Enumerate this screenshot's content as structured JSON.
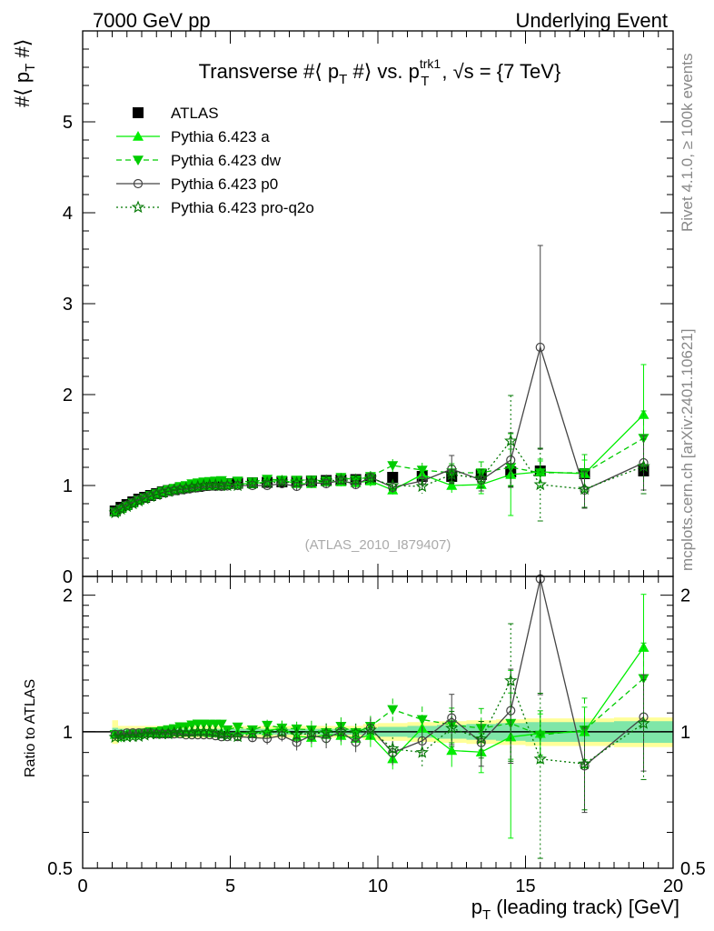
{
  "header": {
    "left": "7000 GeV pp",
    "right": "Underlying Event"
  },
  "side_labels": {
    "rivet": "Rivet 4.1.0, ≥ 100k events",
    "mcplots": "mcplots.cern.ch [arXiv:2401.10621]"
  },
  "chart_data": {
    "type": "line",
    "title": "Transverse #⟨ p_T #⟩ vs. p_T^trk1, √s = {7 TeV}",
    "title_parts": {
      "a": "Transverse #⟨ p",
      "sub1": "T",
      "b": " #⟩ vs. p",
      "sup2": "trk1",
      "sub2": "T",
      "c": ", √s = {7 TeV}"
    },
    "watermark": "(ATLAS_2010_I879407)",
    "ylabel": {
      "main": "#⟨ p",
      "sub": "T",
      "end": " #⟩"
    },
    "ratio_ylabel": "Ratio to ATLAS",
    "xlabel": {
      "main": "p",
      "sub": "T",
      "end": " (leading track) [GeV]"
    },
    "xlim": [
      0,
      20
    ],
    "ylim": [
      0,
      6
    ],
    "ratio_ylim": [
      0.5,
      2.2
    ],
    "x_ticks": [
      "0",
      "5",
      "10",
      "15",
      "20"
    ],
    "y_ticks": [
      "0",
      "1",
      "2",
      "3",
      "4",
      "5"
    ],
    "ratio_ticks": [
      "0.5",
      "1",
      "2"
    ],
    "x": [
      1.1,
      1.3,
      1.5,
      1.7,
      1.9,
      2.1,
      2.3,
      2.5,
      2.7,
      2.9,
      3.1,
      3.3,
      3.5,
      3.7,
      3.9,
      4.1,
      4.3,
      4.5,
      4.7,
      4.9,
      5.25,
      5.75,
      6.25,
      6.75,
      7.25,
      7.75,
      8.25,
      8.75,
      9.25,
      9.75,
      10.5,
      11.5,
      12.5,
      13.5,
      14.5,
      15.5,
      17.0,
      19.0
    ],
    "x_err": [
      0.1,
      0.1,
      0.1,
      0.1,
      0.1,
      0.1,
      0.1,
      0.1,
      0.1,
      0.1,
      0.1,
      0.1,
      0.1,
      0.1,
      0.1,
      0.1,
      0.1,
      0.1,
      0.1,
      0.1,
      0.25,
      0.25,
      0.25,
      0.25,
      0.25,
      0.25,
      0.25,
      0.25,
      0.25,
      0.25,
      0.5,
      0.5,
      0.5,
      0.5,
      0.5,
      0.5,
      1.0,
      1.0
    ],
    "series": [
      {
        "name": "ATLAS",
        "color": "#000000",
        "marker": "square",
        "values": [
          0.72,
          0.76,
          0.79,
          0.82,
          0.85,
          0.87,
          0.89,
          0.91,
          0.93,
          0.945,
          0.955,
          0.965,
          0.975,
          0.985,
          0.99,
          1.0,
          1.005,
          1.01,
          1.015,
          1.02,
          1.025,
          1.03,
          1.035,
          1.04,
          1.045,
          1.05,
          1.055,
          1.06,
          1.065,
          1.07,
          1.09,
          1.1,
          1.1,
          1.12,
          1.15,
          1.16,
          1.13,
          1.16
        ],
        "errors": [
          0.01,
          0.01,
          0.01,
          0.01,
          0.01,
          0.01,
          0.01,
          0.01,
          0.01,
          0.01,
          0.01,
          0.01,
          0.01,
          0.01,
          0.01,
          0.01,
          0.01,
          0.01,
          0.01,
          0.01,
          0.01,
          0.01,
          0.01,
          0.01,
          0.01,
          0.01,
          0.01,
          0.01,
          0.01,
          0.02,
          0.03,
          0.03,
          0.04,
          0.05,
          0.06,
          0.07,
          0.07,
          0.08
        ]
      },
      {
        "name": "Pythia 6.423 a",
        "color": "#00ee00",
        "marker": "triangle-up",
        "dash": "",
        "values": [
          0.71,
          0.75,
          0.78,
          0.81,
          0.84,
          0.865,
          0.885,
          0.905,
          0.925,
          0.94,
          0.955,
          0.965,
          0.975,
          0.985,
          0.99,
          1.0,
          1.0,
          1.005,
          1.01,
          1.01,
          1.02,
          1.02,
          1.04,
          1.06,
          1.02,
          1.02,
          1.04,
          1.04,
          1.03,
          1.05,
          0.95,
          1.12,
          1.0,
          1.01,
          1.12,
          1.15,
          1.13,
          1.78
        ],
        "errors": [
          0.01,
          0.01,
          0.01,
          0.01,
          0.01,
          0.01,
          0.01,
          0.01,
          0.01,
          0.01,
          0.01,
          0.01,
          0.01,
          0.01,
          0.01,
          0.01,
          0.01,
          0.01,
          0.01,
          0.01,
          0.02,
          0.02,
          0.03,
          0.04,
          0.04,
          0.05,
          0.05,
          0.05,
          0.05,
          0.06,
          0.05,
          0.08,
          0.08,
          0.1,
          0.45,
          0.12,
          0.15,
          0.55
        ]
      },
      {
        "name": "Pythia 6.423 dw",
        "color": "#00cc00",
        "marker": "triangle-down",
        "dash": "6,4",
        "values": [
          0.71,
          0.74,
          0.775,
          0.81,
          0.84,
          0.865,
          0.89,
          0.91,
          0.935,
          0.955,
          0.97,
          0.99,
          1.0,
          1.02,
          1.03,
          1.04,
          1.045,
          1.05,
          1.055,
          1.03,
          1.05,
          1.04,
          1.07,
          1.06,
          1.06,
          1.06,
          1.05,
          1.09,
          1.06,
          1.1,
          1.22,
          1.17,
          1.14,
          1.14,
          1.2,
          1.14,
          1.14,
          1.52
        ],
        "errors": [
          0.01,
          0.01,
          0.01,
          0.01,
          0.01,
          0.01,
          0.01,
          0.01,
          0.01,
          0.01,
          0.01,
          0.01,
          0.01,
          0.01,
          0.01,
          0.01,
          0.01,
          0.01,
          0.01,
          0.01,
          0.02,
          0.02,
          0.03,
          0.04,
          0.04,
          0.05,
          0.05,
          0.05,
          0.05,
          0.06,
          0.07,
          0.08,
          0.1,
          0.12,
          0.2,
          0.15,
          0.2,
          0.3
        ]
      },
      {
        "name": "Pythia 6.423 p0",
        "color": "#444444",
        "marker": "circle-open",
        "dash": "",
        "values": [
          0.71,
          0.75,
          0.785,
          0.815,
          0.845,
          0.865,
          0.885,
          0.9,
          0.92,
          0.935,
          0.945,
          0.955,
          0.96,
          0.97,
          0.975,
          0.985,
          0.99,
          0.99,
          0.99,
          0.995,
          1.0,
          1.0,
          1.0,
          1.02,
          0.99,
          1.03,
          1.02,
          1.06,
          1.01,
          1.09,
          0.98,
          1.05,
          1.18,
          1.06,
          1.28,
          2.52,
          0.95,
          1.25
        ],
        "errors": [
          0.01,
          0.01,
          0.01,
          0.01,
          0.01,
          0.01,
          0.01,
          0.01,
          0.01,
          0.01,
          0.01,
          0.01,
          0.01,
          0.01,
          0.01,
          0.01,
          0.01,
          0.01,
          0.01,
          0.01,
          0.02,
          0.02,
          0.03,
          0.03,
          0.04,
          0.04,
          0.05,
          0.05,
          0.05,
          0.06,
          0.06,
          0.08,
          0.15,
          0.12,
          0.3,
          1.12,
          0.2,
          0.3
        ]
      },
      {
        "name": "Pythia 6.423 pro-q2o",
        "color": "#007700",
        "marker": "star-open",
        "dash": "2,3",
        "values": [
          0.7,
          0.74,
          0.77,
          0.8,
          0.83,
          0.855,
          0.88,
          0.9,
          0.92,
          0.935,
          0.95,
          0.96,
          0.97,
          0.98,
          0.99,
          1.0,
          1.005,
          1.005,
          1.0,
          1.0,
          1.0,
          1.02,
          1.03,
          1.04,
          1.03,
          1.04,
          1.05,
          1.06,
          1.06,
          1.08,
          1.0,
          0.99,
          1.12,
          1.08,
          1.49,
          1.01,
          0.96,
          1.21
        ],
        "errors": [
          0.01,
          0.01,
          0.01,
          0.01,
          0.01,
          0.01,
          0.01,
          0.01,
          0.01,
          0.01,
          0.01,
          0.01,
          0.01,
          0.01,
          0.01,
          0.01,
          0.01,
          0.01,
          0.01,
          0.01,
          0.02,
          0.02,
          0.03,
          0.03,
          0.04,
          0.04,
          0.05,
          0.05,
          0.05,
          0.06,
          0.06,
          0.08,
          0.1,
          0.1,
          0.5,
          0.4,
          0.2,
          0.3
        ]
      }
    ],
    "ratio_band": {
      "x_edges": [
        1.0,
        1.2,
        1.4,
        1.6,
        1.8,
        2.0,
        2.2,
        2.4,
        2.6,
        2.8,
        3.0,
        3.2,
        3.4,
        3.6,
        3.8,
        4.0,
        4.2,
        4.4,
        4.6,
        4.8,
        5.0,
        5.5,
        6.0,
        6.5,
        7.0,
        7.5,
        8.0,
        8.5,
        9.0,
        9.5,
        10.0,
        11.0,
        12.0,
        13.0,
        14.0,
        15.0,
        16.0,
        18.0,
        20.0
      ],
      "stat": [
        0.02,
        0.015,
        0.015,
        0.015,
        0.015,
        0.015,
        0.015,
        0.015,
        0.015,
        0.015,
        0.015,
        0.015,
        0.015,
        0.015,
        0.015,
        0.015,
        0.015,
        0.015,
        0.015,
        0.015,
        0.015,
        0.015,
        0.015,
        0.015,
        0.015,
        0.015,
        0.015,
        0.015,
        0.015,
        0.02,
        0.025,
        0.03,
        0.035,
        0.04,
        0.045,
        0.05,
        0.05,
        0.055
      ],
      "total": [
        0.06,
        0.03,
        0.03,
        0.03,
        0.03,
        0.03,
        0.03,
        0.03,
        0.03,
        0.03,
        0.03,
        0.03,
        0.03,
        0.03,
        0.03,
        0.03,
        0.03,
        0.03,
        0.03,
        0.03,
        0.03,
        0.03,
        0.03,
        0.03,
        0.03,
        0.03,
        0.03,
        0.03,
        0.03,
        0.04,
        0.045,
        0.05,
        0.055,
        0.06,
        0.065,
        0.07,
        0.07,
        0.075
      ]
    },
    "colors": {
      "band_stat": "#7fe6a8",
      "band_total": "#ffff99"
    }
  }
}
